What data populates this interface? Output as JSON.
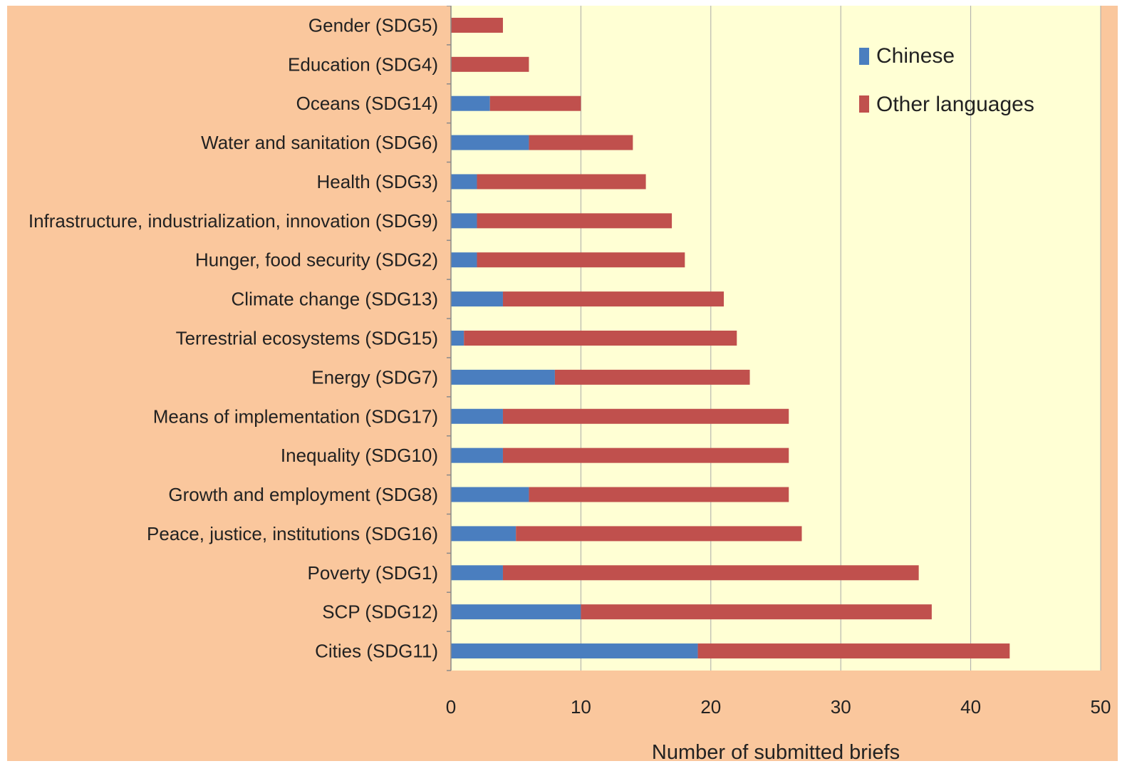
{
  "chart_data": {
    "type": "bar",
    "orientation": "horizontal",
    "stacked": true,
    "categories": [
      "Gender (SDG5)",
      "Education (SDG4)",
      "Oceans (SDG14)",
      "Water and sanitation (SDG6)",
      "Health (SDG3)",
      "Infrastructure, industrialization, innovation (SDG9)",
      "Hunger, food security (SDG2)",
      "Climate change (SDG13)",
      "Terrestrial ecosystems (SDG15)",
      "Energy (SDG7)",
      "Means of implementation (SDG17)",
      "Inequality (SDG10)",
      "Growth and employment (SDG8)",
      "Peace, justice, institutions (SDG16)",
      "Poverty (SDG1)",
      "SCP (SDG12)",
      "Cities (SDG11)"
    ],
    "series": [
      {
        "name": "Chinese",
        "color": "#4a7ebf",
        "values": [
          0,
          0,
          3,
          6,
          2,
          2,
          2,
          4,
          1,
          8,
          4,
          4,
          6,
          5,
          4,
          10,
          19
        ]
      },
      {
        "name": "Other languages",
        "color": "#c0504d",
        "values": [
          4,
          6,
          7,
          8,
          13,
          15,
          16,
          17,
          21,
          15,
          22,
          22,
          20,
          22,
          32,
          27,
          24
        ]
      }
    ],
    "xlabel": "Number of submitted briefs",
    "ylabel": "",
    "title": "",
    "xlim": [
      0,
      50
    ],
    "xticks": [
      "0",
      "10",
      "20",
      "30",
      "40",
      "50"
    ],
    "grid": "vertical",
    "legend_position": "top-right",
    "plot_background": "#ffffd4",
    "panel_background": "#fac79d"
  }
}
